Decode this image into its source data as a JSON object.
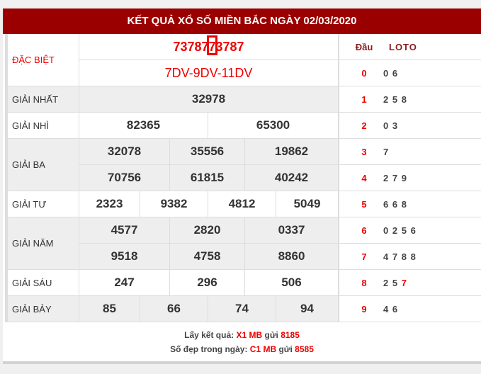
{
  "header": {
    "title": "KẾT QUẢ XỔ SỐ MIỀN BẮC NGÀY 02/03/2020"
  },
  "prizes": [
    {
      "label": "ĐẶC BIỆT",
      "rows": [
        [
          "73787"
        ],
        [
          "7DV-9DV-11DV"
        ]
      ]
    },
    {
      "label": "GIẢI NHẤT",
      "rows": [
        [
          "32978"
        ]
      ]
    },
    {
      "label": "GIẢI NHÌ",
      "rows": [
        [
          "82365",
          "65300"
        ]
      ]
    },
    {
      "label": "GIẢI BA",
      "rows": [
        [
          "32078",
          "35556",
          "19862"
        ],
        [
          "70756",
          "61815",
          "40242"
        ]
      ]
    },
    {
      "label": "GIẢI TƯ",
      "rows": [
        [
          "2323",
          "9382",
          "4812",
          "5049"
        ]
      ]
    },
    {
      "label": "GIẢI NĂM",
      "rows": [
        [
          "4577",
          "2820",
          "0337"
        ],
        [
          "9518",
          "4758",
          "8860"
        ]
      ]
    },
    {
      "label": "GIẢI SÁU",
      "rows": [
        [
          "247",
          "296",
          "506"
        ]
      ]
    },
    {
      "label": "GIẢI BẢY",
      "rows": [
        [
          "85",
          "66",
          "74",
          "94"
        ]
      ]
    }
  ],
  "loto": {
    "dau_header": "Đầu",
    "loto_header": "LOTO",
    "rows": [
      {
        "dau": "0",
        "digits": [
          "0",
          "6"
        ]
      },
      {
        "dau": "1",
        "digits": [
          "2",
          "5",
          "8"
        ]
      },
      {
        "dau": "2",
        "digits": [
          "0",
          "3"
        ]
      },
      {
        "dau": "3",
        "digits": [
          "7"
        ]
      },
      {
        "dau": "4",
        "digits": [
          "2",
          "7",
          "9"
        ]
      },
      {
        "dau": "5",
        "digits": [
          "6",
          "6",
          "8"
        ]
      },
      {
        "dau": "6",
        "digits": [
          "0",
          "2",
          "5",
          "6"
        ]
      },
      {
        "dau": "7",
        "digits": [
          "4",
          "7",
          "8",
          "8"
        ]
      },
      {
        "dau": "8",
        "digits": [
          "2",
          "5",
          "7"
        ],
        "highlight": 2
      },
      {
        "dau": "9",
        "digits": [
          "4",
          "6"
        ]
      }
    ]
  },
  "footer": {
    "line1_prefix": "Lấy kết quả: ",
    "line1_code": "X1 MB",
    "line1_mid": " gửi ",
    "line1_num": "8185",
    "line2_prefix": "Số đẹp trong ngày: ",
    "line2_code": "C1 MB",
    "line2_mid": " gửi ",
    "line2_num": "8585"
  },
  "colors": {
    "header_bg": "#9b0000",
    "accent": "#e00000"
  }
}
